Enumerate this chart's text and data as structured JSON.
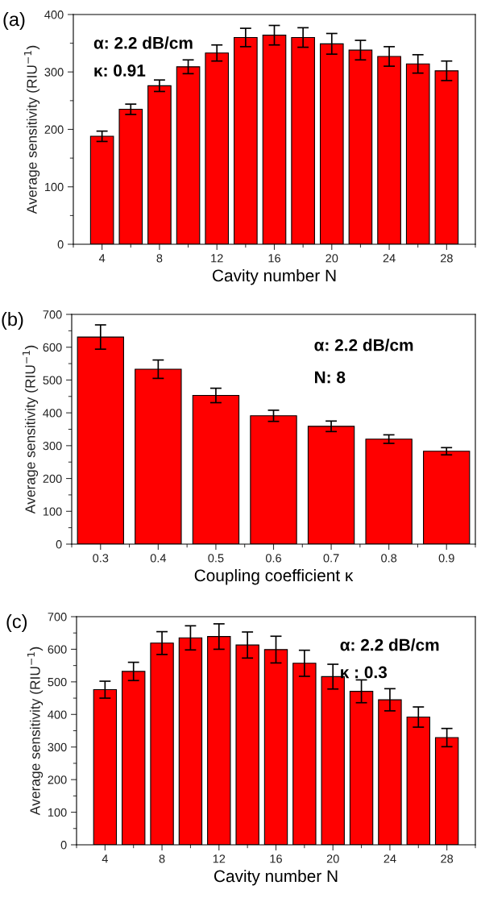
{
  "chart_data": [
    {
      "type": "bar",
      "title": "(a)",
      "xlabel": "Cavity number N",
      "ylabel": "Average sensitivity (RIU$^{−1}$)",
      "annotations": [
        "α: 2.2 dB/cm",
        "κ: 0.91"
      ],
      "x": [
        4,
        6,
        8,
        10,
        12,
        14,
        16,
        18,
        20,
        22,
        24,
        26,
        28
      ],
      "values": [
        188,
        235,
        276,
        309,
        333,
        360,
        364,
        360,
        349,
        338,
        327,
        314,
        302
      ],
      "errors": [
        9,
        9,
        10,
        12,
        14,
        16,
        17,
        17,
        18,
        17,
        17,
        16,
        17
      ],
      "color": "#ff0000",
      "xlim": [
        2,
        30
      ],
      "xticks": [
        4,
        8,
        12,
        16,
        20,
        24,
        28
      ],
      "ylim": [
        0,
        400
      ],
      "yticks": [
        0,
        100,
        200,
        300,
        400
      ],
      "grid": false,
      "legend": false
    },
    {
      "type": "bar",
      "title": "(b)",
      "xlabel": "Coupling coefficient κ",
      "ylabel": "Average sensitivity (RIU$^{−1}$)",
      "annotations": [
        "α: 2.2 dB/cm",
        "N: 8"
      ],
      "x": [
        0.3,
        0.4,
        0.5,
        0.6,
        0.7,
        0.8,
        0.9
      ],
      "values": [
        631,
        533,
        453,
        391,
        359,
        320,
        283
      ],
      "errors": [
        37,
        28,
        22,
        17,
        16,
        13,
        11
      ],
      "color": "#ff0000",
      "xlim": [
        0.25,
        0.95
      ],
      "xticks": [
        0.3,
        0.4,
        0.5,
        0.6,
        0.7,
        0.8,
        0.9
      ],
      "ylim": [
        0,
        700
      ],
      "yticks": [
        0,
        100,
        200,
        300,
        400,
        500,
        600,
        700
      ],
      "grid": false,
      "legend": false
    },
    {
      "type": "bar",
      "title": "(c)",
      "xlabel": "Cavity number N",
      "ylabel": "Average sensitivity (RIU$^{−1}$)",
      "annotations": [
        "α: 2.2 dB/cm",
        "κ : 0.3"
      ],
      "x": [
        4,
        6,
        8,
        10,
        12,
        14,
        16,
        18,
        20,
        22,
        24,
        26,
        28
      ],
      "values": [
        476,
        532,
        619,
        635,
        639,
        613,
        599,
        557,
        516,
        471,
        445,
        392,
        329
      ],
      "errors": [
        26,
        28,
        35,
        37,
        39,
        40,
        41,
        40,
        38,
        35,
        34,
        31,
        28
      ],
      "color": "#ff0000",
      "xlim": [
        2,
        30
      ],
      "xticks": [
        4,
        8,
        12,
        16,
        20,
        24,
        28
      ],
      "ylim": [
        0,
        700
      ],
      "yticks": [
        0,
        100,
        200,
        300,
        400,
        500,
        600,
        700
      ],
      "grid": false,
      "legend": false
    }
  ]
}
